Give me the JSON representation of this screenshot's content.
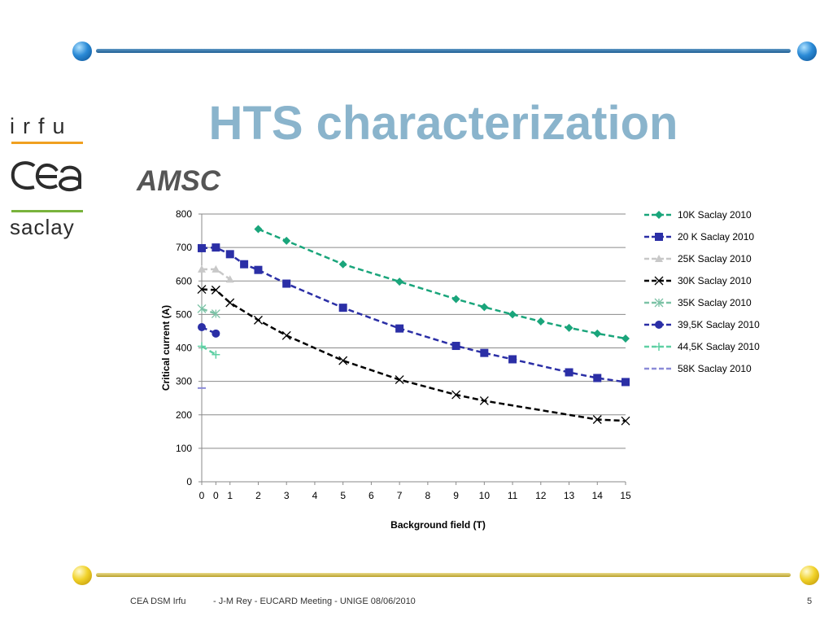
{
  "slide": {
    "title": "HTS characterization",
    "subtitle": "AMSC",
    "footer_left": "CEA DSM Irfu",
    "footer_center": "- J-M Rey - EUCARD Meeting  - UNIGE 08/06/2010",
    "page_number": "5"
  },
  "logos": {
    "irfu": "irfu",
    "cea": "cea",
    "saclay": "saclay"
  },
  "chart_data": {
    "type": "line",
    "xlabel": "Background field (T)",
    "ylabel": "Critical current (A)",
    "xlim": [
      0,
      15
    ],
    "ylim": [
      0,
      800
    ],
    "x_ticks": [
      0,
      0.5,
      1,
      2,
      3,
      4,
      5,
      6,
      7,
      8,
      9,
      10,
      11,
      12,
      13,
      14,
      15
    ],
    "x_tick_labels": [
      "0",
      "0",
      "1",
      "2",
      "3",
      "4",
      "5",
      "6",
      "7",
      "8",
      "9",
      "10",
      "11",
      "12",
      "13",
      "14",
      "15"
    ],
    "y_ticks": [
      0,
      100,
      200,
      300,
      400,
      500,
      600,
      700,
      800
    ],
    "grid": true,
    "legend_position": "right",
    "series": [
      {
        "name": "10K Saclay 2010",
        "color": "#1aa57b",
        "marker": "diamond",
        "x": [
          2,
          3,
          5,
          7,
          9,
          10,
          11,
          12,
          13,
          14,
          15
        ],
        "y": [
          755,
          720,
          650,
          598,
          546,
          522,
          500,
          479,
          460,
          443,
          428
        ]
      },
      {
        "name": "20 K Saclay 2010",
        "color": "#2b2fa6",
        "marker": "square",
        "x": [
          0,
          0.5,
          1,
          1.5,
          2,
          3,
          5,
          7,
          9,
          10,
          11,
          13,
          14,
          15
        ],
        "y": [
          698,
          700,
          680,
          650,
          633,
          592,
          520,
          458,
          406,
          385,
          366,
          327,
          310,
          298
        ]
      },
      {
        "name": "25K Saclay 2010",
        "color": "#c8c8c8",
        "marker": "triangle",
        "x": [
          0,
          0.5,
          1
        ],
        "y": [
          635,
          635,
          605
        ]
      },
      {
        "name": "30K Saclay 2010",
        "color": "#000000",
        "marker": "x",
        "x": [
          0,
          0.5,
          1,
          2,
          3,
          5,
          7,
          9,
          10,
          14,
          15
        ],
        "y": [
          575,
          573,
          535,
          483,
          437,
          362,
          305,
          260,
          242,
          186,
          182
        ]
      },
      {
        "name": "35K Saclay 2010",
        "color": "#7cc2a6",
        "marker": "star",
        "x": [
          0,
          0.5
        ],
        "y": [
          517,
          502
        ]
      },
      {
        "name": "39,5K Saclay 2010",
        "color": "#2b2fa6",
        "marker": "circle",
        "x": [
          0,
          0.5
        ],
        "y": [
          462,
          443
        ]
      },
      {
        "name": "44,5K Saclay 2010",
        "color": "#5fd0a4",
        "marker": "plus",
        "x": [
          0,
          0.5
        ],
        "y": [
          405,
          380
        ]
      },
      {
        "name": "58K Saclay 2010",
        "color": "#8b8bd8",
        "marker": "dash",
        "x": [
          0
        ],
        "y": [
          280
        ]
      }
    ]
  }
}
